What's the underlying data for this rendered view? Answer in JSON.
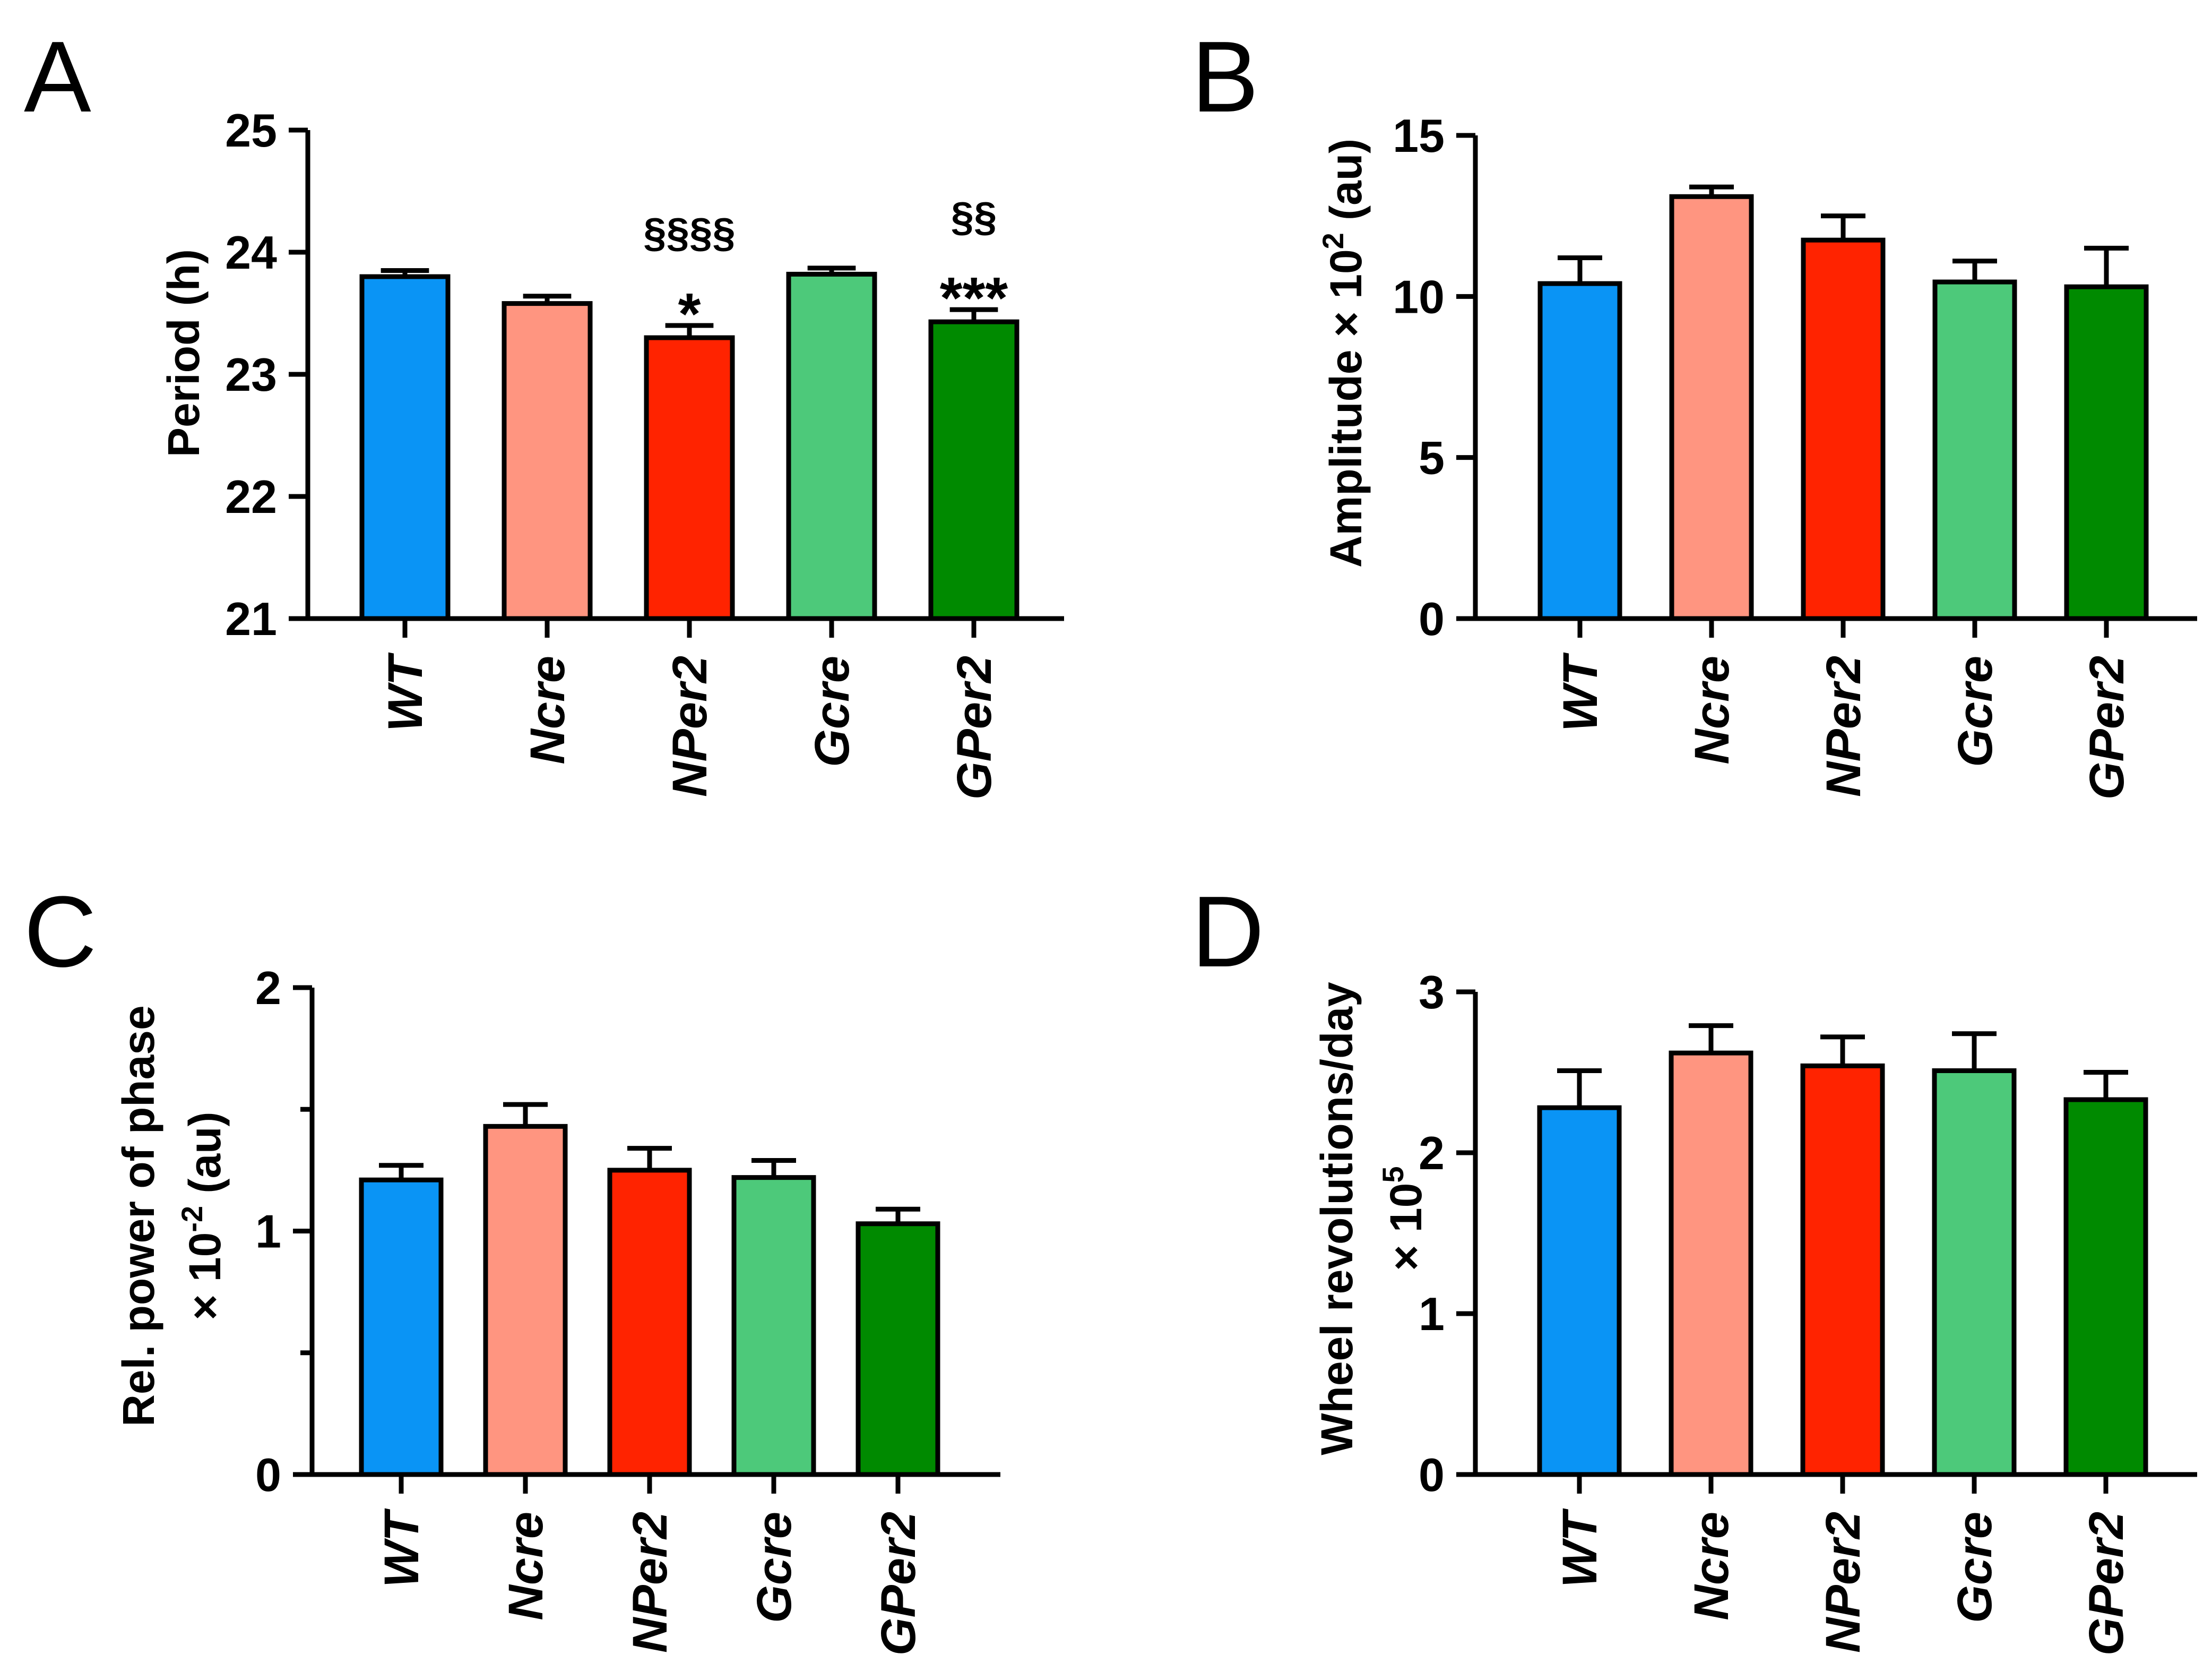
{
  "chart_data": [
    {
      "panel": "A",
      "type": "bar",
      "categories": [
        "WT",
        "Ncre",
        "NPer2",
        "Gcre",
        "GPer2"
      ],
      "values": [
        23.8,
        23.58,
        23.3,
        23.82,
        23.43
      ],
      "errors": [
        0.05,
        0.06,
        0.1,
        0.05,
        0.1
      ],
      "ylabel": "Period (h)",
      "ylim": [
        21,
        25
      ],
      "ticks": [
        21,
        22,
        23,
        24,
        25
      ],
      "minor_ticks": [],
      "colors": [
        "#0a94f5",
        "#ff9580",
        "#ff2300",
        "#4dc97a",
        "#008a00"
      ],
      "annotations": [
        {
          "category_index": 2,
          "star": "*",
          "section": "§§§§"
        },
        {
          "category_index": 4,
          "star": "***",
          "section": "§§"
        }
      ]
    },
    {
      "panel": "B",
      "type": "bar",
      "categories": [
        "WT",
        "Ncre",
        "NPer2",
        "Gcre",
        "GPer2"
      ],
      "values": [
        10.4,
        13.1,
        11.75,
        10.45,
        10.3
      ],
      "errors": [
        0.8,
        0.3,
        0.75,
        0.65,
        1.2
      ],
      "ylabel_main": "Amplitude × 10",
      "ylabel_sup": "2",
      "ylabel_tail": " (au)",
      "ylim": [
        0,
        15
      ],
      "ticks": [
        0,
        5,
        10,
        15
      ],
      "minor_ticks": [],
      "colors": [
        "#0a94f5",
        "#ff9580",
        "#ff2300",
        "#4dc97a",
        "#008a00"
      ]
    },
    {
      "panel": "C",
      "type": "bar",
      "categories": [
        "WT",
        "Ncre",
        "NPer2",
        "Gcre",
        "GPer2"
      ],
      "values": [
        1.21,
        1.43,
        1.25,
        1.22,
        1.03
      ],
      "errors": [
        0.06,
        0.09,
        0.09,
        0.07,
        0.06
      ],
      "ylabel_line1": "Rel. power of phase",
      "ylabel_line2_main": "× 10",
      "ylabel_line2_sup": "-2",
      "ylabel_line2_tail": " (au)",
      "ylim": [
        0,
        2
      ],
      "ticks": [
        0,
        1,
        2
      ],
      "minor_ticks": [
        0.5,
        1.5
      ],
      "colors": [
        "#0a94f5",
        "#ff9580",
        "#ff2300",
        "#4dc97a",
        "#008a00"
      ]
    },
    {
      "panel": "D",
      "type": "bar",
      "categories": [
        "WT",
        "Ncre",
        "NPer2",
        "Gcre",
        "GPer2"
      ],
      "values": [
        2.28,
        2.62,
        2.54,
        2.51,
        2.33
      ],
      "errors": [
        0.23,
        0.17,
        0.18,
        0.23,
        0.17
      ],
      "ylabel_line1": "Wheel revolutions/day",
      "ylabel_line2_main": "× 10",
      "ylabel_line2_sup": "5",
      "ylim": [
        0,
        3
      ],
      "ticks": [
        0,
        1,
        2,
        3
      ],
      "minor_ticks": [],
      "colors": [
        "#0a94f5",
        "#ff9580",
        "#ff2300",
        "#4dc97a",
        "#008a00"
      ]
    }
  ]
}
